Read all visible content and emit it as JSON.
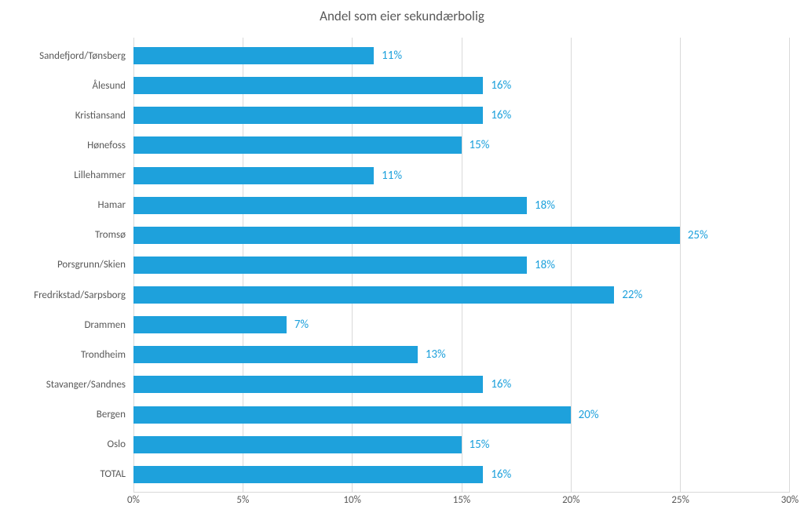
{
  "chart": {
    "type": "bar-horizontal",
    "title": "Andel som eier sekundærbolig",
    "title_fontsize": 17,
    "title_color": "#595959",
    "background_color": "#ffffff",
    "bar_color": "#1ea1dc",
    "data_label_color": "#1ea1dc",
    "data_label_fontsize": 15,
    "category_label_color": "#595959",
    "category_label_fontsize": 13,
    "tick_label_color": "#595959",
    "tick_label_fontsize": 13,
    "grid_color": "#d9d9d9",
    "xmin": 0,
    "xmax": 30,
    "x_ticks": [
      {
        "value": 0,
        "label": "0%"
      },
      {
        "value": 5,
        "label": "5%"
      },
      {
        "value": 10,
        "label": "10%"
      },
      {
        "value": 15,
        "label": "15%"
      },
      {
        "value": 20,
        "label": "20%"
      },
      {
        "value": 25,
        "label": "25%"
      },
      {
        "value": 30,
        "label": "30%"
      }
    ],
    "categories": [
      {
        "name": "Sandefjord/Tønsberg",
        "value": 11,
        "label": "11%"
      },
      {
        "name": "Ålesund",
        "value": 16,
        "label": "16%"
      },
      {
        "name": "Kristiansand",
        "value": 16,
        "label": "16%"
      },
      {
        "name": "Hønefoss",
        "value": 15,
        "label": "15%"
      },
      {
        "name": "Lillehammer",
        "value": 11,
        "label": "11%"
      },
      {
        "name": "Hamar",
        "value": 18,
        "label": "18%"
      },
      {
        "name": "Tromsø",
        "value": 25,
        "label": "25%"
      },
      {
        "name": "Porsgrunn/Skien",
        "value": 18,
        "label": "18%"
      },
      {
        "name": "Fredrikstad/Sarpsborg",
        "value": 22,
        "label": "22%"
      },
      {
        "name": "Drammen",
        "value": 7,
        "label": "7%"
      },
      {
        "name": "Trondheim",
        "value": 13,
        "label": "13%"
      },
      {
        "name": "Stavanger/Sandnes",
        "value": 16,
        "label": "16%"
      },
      {
        "name": "Bergen",
        "value": 20,
        "label": "20%"
      },
      {
        "name": "Oslo",
        "value": 15,
        "label": "15%"
      },
      {
        "name": "TOTAL",
        "value": 16,
        "label": "16%"
      }
    ]
  }
}
